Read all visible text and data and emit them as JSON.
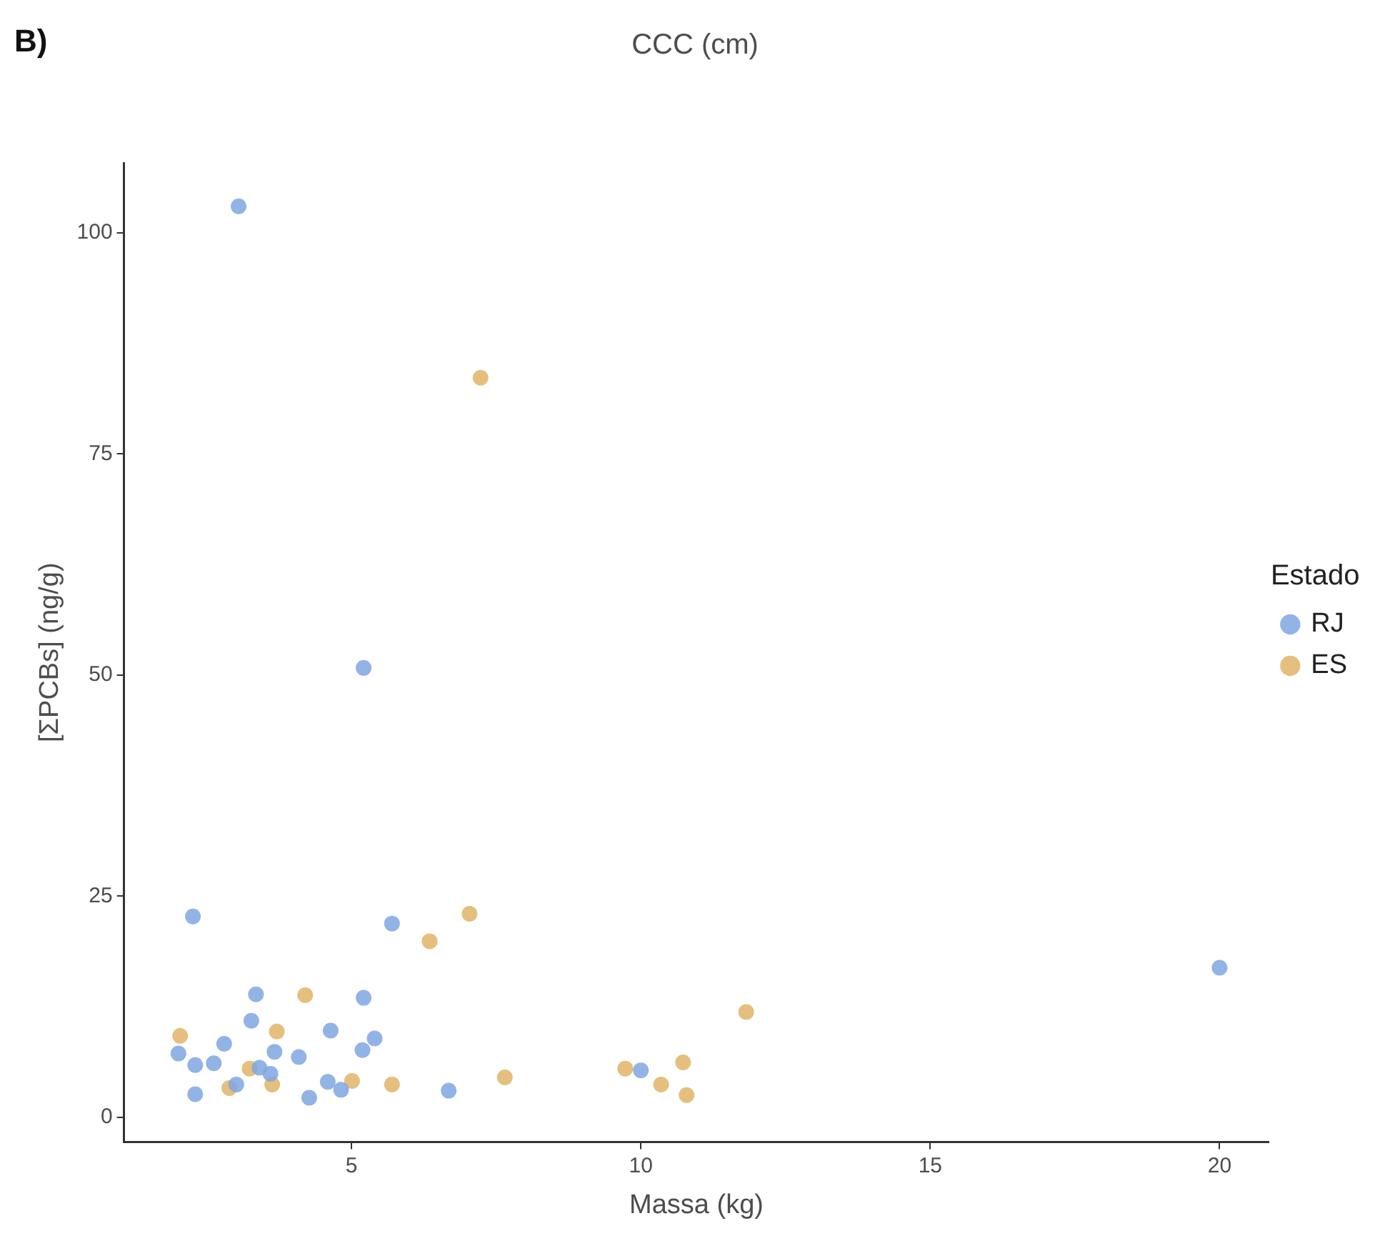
{
  "chart_data": {
    "type": "scatter",
    "title": "CCC (cm)",
    "xlabel": "Massa (kg)",
    "ylabel": "[ΣPCBs] (ng/g)",
    "legend_title": "Estado",
    "annotations": [
      "B)"
    ],
    "xlim": [
      1.07,
      20.85
    ],
    "xticks": [
      5,
      10,
      15,
      20
    ],
    "ylim": [
      -2.8,
      107.9
    ],
    "yticks": [
      0,
      25,
      50,
      75,
      100
    ],
    "grid": false,
    "legend": "right",
    "marker": "circle",
    "series": [
      {
        "name": "RJ",
        "color": "#7fa6e0",
        "x": [
          3.05,
          5.21,
          2.26,
          5.7,
          3.35,
          5.21,
          3.27,
          4.59,
          4.64,
          5.4,
          2.8,
          3.64,
          3.67,
          5.19,
          2.01,
          2.35,
          2.62,
          2.3,
          4.09,
          3.41,
          3.6,
          3.01,
          4.59,
          4.82,
          2.3,
          4.27,
          6.68,
          10.0,
          20.0
        ],
        "values": [
          103,
          50.8,
          22.7,
          21.9,
          13.9,
          13.5,
          10.9,
          null,
          9.8,
          8.9,
          8.3,
          null,
          7.4,
          7.6,
          7.2,
          null,
          6.1,
          5.9,
          6.8,
          5.6,
          4.9,
          3.7,
          4.0,
          3.1,
          2.6,
          2.2,
          3.0,
          5.3,
          16.9
        ]
      },
      {
        "name": "ES",
        "color": "#e0b466",
        "x": [
          7.23,
          7.04,
          6.35,
          4.2,
          2.04,
          3.71,
          3.24,
          3.63,
          2.89,
          5.01,
          5.7,
          7.65,
          9.73,
          10.73,
          10.35,
          10.79,
          11.82
        ],
        "values": [
          83.6,
          23.0,
          19.9,
          13.8,
          9.2,
          9.7,
          5.5,
          3.7,
          3.3,
          4.1,
          3.7,
          4.5,
          5.5,
          6.2,
          3.7,
          2.5,
          11.9
        ]
      }
    ]
  }
}
